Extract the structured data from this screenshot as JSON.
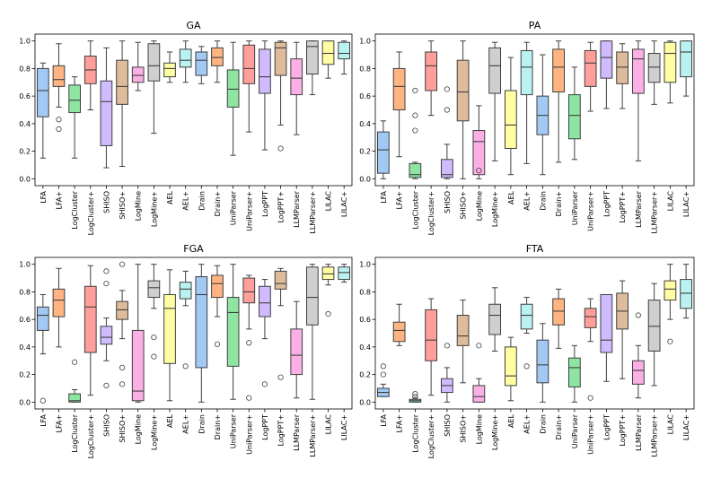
{
  "chart_data": [
    {
      "type": "boxplot",
      "title": "GA",
      "ylim": [
        -0.05,
        1.05
      ],
      "yticks": [
        0.0,
        0.2,
        0.4,
        0.6,
        0.8,
        1.0
      ],
      "ytick_labels": [
        "0.0",
        "0.2",
        "0.4",
        "0.6",
        "0.8",
        "1.0"
      ],
      "grid": false,
      "categories": [
        "LFA",
        "LFA+",
        "LogCluster",
        "LogCluster+",
        "SHISO",
        "SHISO+",
        "LogMine",
        "LogMine+",
        "AEL",
        "AEL+",
        "Drain",
        "Drain+",
        "UniParser",
        "UniParser+",
        "LogPPT",
        "LogPPT+",
        "LLMParser",
        "LLMParser+",
        "LILAC",
        "LILAC+"
      ],
      "boxes": [
        {
          "whislo": 0.15,
          "q1": 0.45,
          "med": 0.64,
          "q3": 0.8,
          "whishi": 0.84,
          "fliers": []
        },
        {
          "whislo": 0.52,
          "q1": 0.67,
          "med": 0.72,
          "q3": 0.82,
          "whishi": 0.98,
          "fliers": [
            0.43,
            0.36
          ]
        },
        {
          "whislo": 0.15,
          "q1": 0.48,
          "med": 0.57,
          "q3": 0.68,
          "whishi": 0.74,
          "fliers": []
        },
        {
          "whislo": 0.5,
          "q1": 0.69,
          "med": 0.79,
          "q3": 0.89,
          "whishi": 1.0,
          "fliers": []
        },
        {
          "whislo": 0.08,
          "q1": 0.24,
          "med": 0.56,
          "q3": 0.71,
          "whishi": 0.95,
          "fliers": []
        },
        {
          "whislo": 0.09,
          "q1": 0.54,
          "med": 0.67,
          "q3": 0.86,
          "whishi": 1.0,
          "fliers": []
        },
        {
          "whislo": 0.64,
          "q1": 0.7,
          "med": 0.75,
          "q3": 0.81,
          "whishi": 0.99,
          "fliers": []
        },
        {
          "whislo": 0.33,
          "q1": 0.71,
          "med": 0.82,
          "q3": 0.98,
          "whishi": 1.0,
          "fliers": []
        },
        {
          "whislo": 0.7,
          "q1": 0.74,
          "med": 0.8,
          "q3": 0.84,
          "whishi": 0.92,
          "fliers": []
        },
        {
          "whislo": 0.7,
          "q1": 0.81,
          "med": 0.86,
          "q3": 0.94,
          "whishi": 1.0,
          "fliers": []
        },
        {
          "whislo": 0.69,
          "q1": 0.75,
          "med": 0.86,
          "q3": 0.92,
          "whishi": 0.96,
          "fliers": []
        },
        {
          "whislo": 0.7,
          "q1": 0.82,
          "med": 0.88,
          "q3": 0.95,
          "whishi": 1.0,
          "fliers": []
        },
        {
          "whislo": 0.17,
          "q1": 0.52,
          "med": 0.65,
          "q3": 0.79,
          "whishi": 0.99,
          "fliers": []
        },
        {
          "whislo": 0.34,
          "q1": 0.69,
          "med": 0.8,
          "q3": 0.97,
          "whishi": 1.0,
          "fliers": []
        },
        {
          "whislo": 0.21,
          "q1": 0.62,
          "med": 0.74,
          "q3": 0.94,
          "whishi": 1.0,
          "fliers": []
        },
        {
          "whislo": 0.39,
          "q1": 0.75,
          "med": 0.95,
          "q3": 0.99,
          "whishi": 1.0,
          "fliers": [
            0.22
          ]
        },
        {
          "whislo": 0.32,
          "q1": 0.61,
          "med": 0.73,
          "q3": 0.87,
          "whishi": 0.99,
          "fliers": []
        },
        {
          "whislo": 0.61,
          "q1": 0.76,
          "med": 0.96,
          "q3": 1.0,
          "whishi": 1.0,
          "fliers": []
        },
        {
          "whislo": 0.73,
          "q1": 0.83,
          "med": 0.91,
          "q3": 1.0,
          "whishi": 1.0,
          "fliers": []
        },
        {
          "whislo": 0.76,
          "q1": 0.87,
          "med": 0.91,
          "q3": 0.99,
          "whishi": 1.0,
          "fliers": []
        }
      ]
    },
    {
      "type": "boxplot",
      "title": "PA",
      "ylim": [
        -0.05,
        1.05
      ],
      "yticks": [
        0.0,
        0.2,
        0.4,
        0.6,
        0.8,
        1.0
      ],
      "ytick_labels": [
        "0.0",
        "0.2",
        "0.4",
        "0.6",
        "0.8",
        "1.0"
      ],
      "grid": false,
      "categories": [
        "LFA",
        "LFA+",
        "LogCluster",
        "LogCluster+",
        "SHISO",
        "SHISO+",
        "LogMine",
        "LogMine+",
        "AEL",
        "AEL+",
        "Drain",
        "Drain+",
        "UniParser",
        "UniParser+",
        "LogPPT",
        "LogPPT+",
        "LLMParser",
        "LLMParser+",
        "LILAC",
        "LILAC+"
      ],
      "boxes": [
        {
          "whislo": 0.0,
          "q1": 0.04,
          "med": 0.21,
          "q3": 0.34,
          "whishi": 0.42,
          "fliers": []
        },
        {
          "whislo": 0.16,
          "q1": 0.5,
          "med": 0.67,
          "q3": 0.8,
          "whishi": 0.92,
          "fliers": []
        },
        {
          "whislo": 0.0,
          "q1": 0.01,
          "med": 0.03,
          "q3": 0.11,
          "whishi": 0.12,
          "fliers": [
            0.35,
            0.46,
            0.64
          ]
        },
        {
          "whislo": 0.46,
          "q1": 0.64,
          "med": 0.82,
          "q3": 0.92,
          "whishi": 1.0,
          "fliers": []
        },
        {
          "whislo": 0.0,
          "q1": 0.01,
          "med": 0.03,
          "q3": 0.14,
          "whishi": 0.25,
          "fliers": [
            0.5,
            0.65
          ]
        },
        {
          "whislo": 0.0,
          "q1": 0.42,
          "med": 0.63,
          "q3": 0.86,
          "whishi": 1.0,
          "fliers": []
        },
        {
          "whislo": 0.0,
          "q1": 0.03,
          "med": 0.27,
          "q3": 0.35,
          "whishi": 0.53,
          "fliers": [
            0.06
          ]
        },
        {
          "whislo": 0.13,
          "q1": 0.62,
          "med": 0.82,
          "q3": 0.95,
          "whishi": 0.99,
          "fliers": []
        },
        {
          "whislo": 0.03,
          "q1": 0.22,
          "med": 0.39,
          "q3": 0.64,
          "whishi": 0.88,
          "fliers": []
        },
        {
          "whislo": 0.11,
          "q1": 0.61,
          "med": 0.81,
          "q3": 0.93,
          "whishi": 0.99,
          "fliers": []
        },
        {
          "whislo": 0.03,
          "q1": 0.32,
          "med": 0.46,
          "q3": 0.6,
          "whishi": 0.9,
          "fliers": []
        },
        {
          "whislo": 0.12,
          "q1": 0.63,
          "med": 0.81,
          "q3": 0.94,
          "whishi": 1.0,
          "fliers": []
        },
        {
          "whislo": 0.14,
          "q1": 0.29,
          "med": 0.46,
          "q3": 0.61,
          "whishi": 0.81,
          "fliers": []
        },
        {
          "whislo": 0.49,
          "q1": 0.67,
          "med": 0.84,
          "q3": 0.93,
          "whishi": 0.99,
          "fliers": []
        },
        {
          "whislo": 0.51,
          "q1": 0.73,
          "med": 0.88,
          "q3": 1.0,
          "whishi": 1.0,
          "fliers": []
        },
        {
          "whislo": 0.51,
          "q1": 0.69,
          "med": 0.81,
          "q3": 0.92,
          "whishi": 0.98,
          "fliers": []
        },
        {
          "whislo": 0.13,
          "q1": 0.62,
          "med": 0.87,
          "q3": 0.94,
          "whishi": 1.0,
          "fliers": []
        },
        {
          "whislo": 0.54,
          "q1": 0.7,
          "med": 0.81,
          "q3": 0.91,
          "whishi": 1.0,
          "fliers": []
        },
        {
          "whislo": 0.55,
          "q1": 0.7,
          "med": 0.91,
          "q3": 0.99,
          "whishi": 1.0,
          "fliers": []
        },
        {
          "whislo": 0.6,
          "q1": 0.74,
          "med": 0.92,
          "q3": 1.0,
          "whishi": 1.0,
          "fliers": []
        }
      ]
    },
    {
      "type": "boxplot",
      "title": "FGA",
      "ylim": [
        -0.05,
        1.05
      ],
      "yticks": [
        0.0,
        0.2,
        0.4,
        0.6,
        0.8,
        1.0
      ],
      "ytick_labels": [
        "0.0",
        "0.2",
        "0.4",
        "0.6",
        "0.8",
        "1.0"
      ],
      "grid": false,
      "categories": [
        "LFA",
        "LFA+",
        "LogCluster",
        "LogCluster+",
        "SHISO",
        "SHISO+",
        "LogMine",
        "LogMine+",
        "AEL",
        "AEL+",
        "Drain",
        "Drain+",
        "UniParser",
        "UniParser+",
        "LogPPT",
        "LogPPT+",
        "LLMParser",
        "LLMParser+",
        "LILAC",
        "LILAC+"
      ],
      "boxes": [
        {
          "whislo": 0.35,
          "q1": 0.52,
          "med": 0.63,
          "q3": 0.69,
          "whishi": 0.78,
          "fliers": [
            0.01
          ]
        },
        {
          "whislo": 0.4,
          "q1": 0.62,
          "med": 0.74,
          "q3": 0.82,
          "whishi": 0.97,
          "fliers": []
        },
        {
          "whislo": 0.0,
          "q1": 0.0,
          "med": 0.01,
          "q3": 0.06,
          "whishi": 0.09,
          "fliers": [
            0.29
          ]
        },
        {
          "whislo": 0.05,
          "q1": 0.36,
          "med": 0.69,
          "q3": 0.84,
          "whishi": 0.99,
          "fliers": []
        },
        {
          "whislo": 0.3,
          "q1": 0.42,
          "med": 0.47,
          "q3": 0.55,
          "whishi": 0.61,
          "fliers": [
            0.12,
            0.86,
            0.95
          ]
        },
        {
          "whislo": 0.46,
          "q1": 0.6,
          "med": 0.67,
          "q3": 0.73,
          "whishi": 0.81,
          "fliers": [
            0.13,
            0.25,
            1.0
          ]
        },
        {
          "whislo": 0.0,
          "q1": 0.01,
          "med": 0.08,
          "q3": 0.52,
          "whishi": 1.0,
          "fliers": []
        },
        {
          "whislo": 0.68,
          "q1": 0.76,
          "med": 0.83,
          "q3": 0.88,
          "whishi": 1.0,
          "fliers": [
            0.33,
            0.47
          ]
        },
        {
          "whislo": 0.01,
          "q1": 0.28,
          "med": 0.68,
          "q3": 0.78,
          "whishi": 0.96,
          "fliers": []
        },
        {
          "whislo": 0.7,
          "q1": 0.75,
          "med": 0.82,
          "q3": 0.87,
          "whishi": 0.95,
          "fliers": [
            0.26
          ]
        },
        {
          "whislo": 0.0,
          "q1": 0.25,
          "med": 0.78,
          "q3": 0.91,
          "whishi": 1.0,
          "fliers": []
        },
        {
          "whislo": 0.62,
          "q1": 0.76,
          "med": 0.86,
          "q3": 0.92,
          "whishi": 0.99,
          "fliers": [
            0.42
          ]
        },
        {
          "whislo": 0.02,
          "q1": 0.26,
          "med": 0.65,
          "q3": 0.76,
          "whishi": 1.0,
          "fliers": []
        },
        {
          "whislo": 0.53,
          "q1": 0.72,
          "med": 0.8,
          "q3": 0.9,
          "whishi": 0.92,
          "fliers": [
            0.43,
            0.03
          ]
        },
        {
          "whislo": 0.46,
          "q1": 0.62,
          "med": 0.72,
          "q3": 0.84,
          "whishi": 0.89,
          "fliers": [
            0.13
          ]
        },
        {
          "whislo": 0.7,
          "q1": 0.82,
          "med": 0.86,
          "q3": 0.95,
          "whishi": 0.97,
          "fliers": [
            0.18
          ]
        },
        {
          "whislo": 0.03,
          "q1": 0.2,
          "med": 0.34,
          "q3": 0.53,
          "whishi": 0.73,
          "fliers": []
        },
        {
          "whislo": 0.02,
          "q1": 0.56,
          "med": 0.76,
          "q3": 0.98,
          "whishi": 1.0,
          "fliers": []
        },
        {
          "whislo": 0.85,
          "q1": 0.89,
          "med": 0.93,
          "q3": 0.98,
          "whishi": 1.0,
          "fliers": [
            0.64
          ]
        },
        {
          "whislo": 0.87,
          "q1": 0.89,
          "med": 0.94,
          "q3": 0.98,
          "whishi": 1.0,
          "fliers": []
        }
      ]
    },
    {
      "type": "boxplot",
      "title": "FTA",
      "ylim": [
        -0.05,
        1.05
      ],
      "yticks": [
        0.0,
        0.2,
        0.4,
        0.6,
        0.8,
        1.0
      ],
      "ytick_labels": [
        "0.0",
        "0.2",
        "0.4",
        "0.6",
        "0.8",
        "1.0"
      ],
      "grid": false,
      "categories": [
        "LFA",
        "LFA+",
        "LogCluster",
        "LogCluster+",
        "SHISO",
        "SHISO+",
        "LogMine",
        "LogMine+",
        "AEL",
        "AEL+",
        "Drain",
        "Drain+",
        "UniParser",
        "UniParser+",
        "LogPPT",
        "LogPPT+",
        "LLMParser",
        "LLMParser+",
        "LILAC",
        "LILAC+"
      ],
      "boxes": [
        {
          "whislo": 0.04,
          "q1": 0.04,
          "med": 0.07,
          "q3": 0.1,
          "whishi": 0.13,
          "fliers": [
            0.2,
            0.26
          ]
        },
        {
          "whislo": 0.41,
          "q1": 0.44,
          "med": 0.52,
          "q3": 0.58,
          "whishi": 0.71,
          "fliers": []
        },
        {
          "whislo": 0.0,
          "q1": 0.0,
          "med": 0.01,
          "q3": 0.02,
          "whishi": 0.03,
          "fliers": [
            0.04,
            0.06
          ]
        },
        {
          "whislo": 0.05,
          "q1": 0.3,
          "med": 0.45,
          "q3": 0.67,
          "whishi": 0.75,
          "fliers": []
        },
        {
          "whislo": 0.0,
          "q1": 0.07,
          "med": 0.12,
          "q3": 0.17,
          "whishi": 0.25,
          "fliers": [
            0.41
          ]
        },
        {
          "whislo": 0.14,
          "q1": 0.41,
          "med": 0.48,
          "q3": 0.63,
          "whishi": 0.74,
          "fliers": []
        },
        {
          "whislo": 0.0,
          "q1": 0.0,
          "med": 0.04,
          "q3": 0.12,
          "whishi": 0.17,
          "fliers": [
            0.41
          ]
        },
        {
          "whislo": 0.37,
          "q1": 0.49,
          "med": 0.63,
          "q3": 0.71,
          "whishi": 0.83,
          "fliers": []
        },
        {
          "whislo": 0.01,
          "q1": 0.12,
          "med": 0.19,
          "q3": 0.4,
          "whishi": 0.47,
          "fliers": []
        },
        {
          "whislo": 0.5,
          "q1": 0.53,
          "med": 0.63,
          "q3": 0.71,
          "whishi": 0.76,
          "fliers": [
            0.26
          ]
        },
        {
          "whislo": 0.0,
          "q1": 0.14,
          "med": 0.27,
          "q3": 0.45,
          "whishi": 0.57,
          "fliers": []
        },
        {
          "whislo": 0.39,
          "q1": 0.56,
          "med": 0.66,
          "q3": 0.75,
          "whishi": 0.82,
          "fliers": []
        },
        {
          "whislo": 0.0,
          "q1": 0.11,
          "med": 0.25,
          "q3": 0.32,
          "whishi": 0.41,
          "fliers": []
        },
        {
          "whislo": 0.44,
          "q1": 0.54,
          "med": 0.62,
          "q3": 0.68,
          "whishi": 0.75,
          "fliers": [
            0.03
          ]
        },
        {
          "whislo": 0.15,
          "q1": 0.36,
          "med": 0.45,
          "q3": 0.78,
          "whishi": 0.78,
          "fliers": []
        },
        {
          "whislo": 0.17,
          "q1": 0.53,
          "med": 0.66,
          "q3": 0.79,
          "whishi": 0.88,
          "fliers": []
        },
        {
          "whislo": 0.03,
          "q1": 0.13,
          "med": 0.23,
          "q3": 0.3,
          "whishi": 0.41,
          "fliers": [
            0.63
          ]
        },
        {
          "whislo": 0.12,
          "q1": 0.37,
          "med": 0.55,
          "q3": 0.74,
          "whishi": 0.86,
          "fliers": []
        },
        {
          "whislo": 0.6,
          "q1": 0.74,
          "med": 0.82,
          "q3": 0.88,
          "whishi": 1.0,
          "fliers": [
            0.44
          ]
        },
        {
          "whislo": 0.61,
          "q1": 0.68,
          "med": 0.79,
          "q3": 0.89,
          "whishi": 1.0,
          "fliers": []
        }
      ]
    }
  ],
  "colors": {
    "box_fills": [
      "#a1c9f4",
      "#ffb482",
      "#8de5a1",
      "#ff9f9b",
      "#d0bbff",
      "#debb9b",
      "#fab0e4",
      "#cfcfcf",
      "#fffea3",
      "#b9f2f0",
      "#a1c9f4",
      "#ffb482",
      "#8de5a1",
      "#ff9f9b",
      "#d0bbff",
      "#debb9b",
      "#fab0e4",
      "#cfcfcf",
      "#fffea3",
      "#b9f2f0"
    ],
    "box_edge": "#3f3f3f",
    "median": "#3f3f3f",
    "axis": "#000000"
  }
}
